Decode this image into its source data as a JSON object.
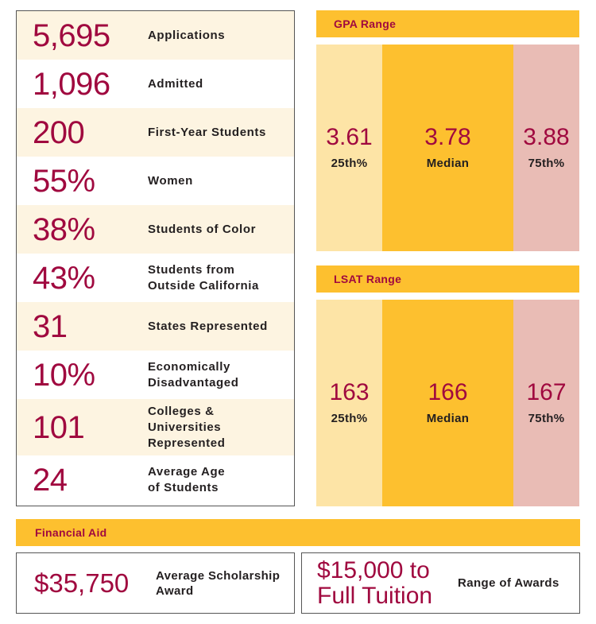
{
  "stats": [
    {
      "value": "5,695",
      "label": "Applications"
    },
    {
      "value": "1,096",
      "label": "Admitted"
    },
    {
      "value": "200",
      "label": "First-Year Students"
    },
    {
      "value": "55%",
      "label": "Women"
    },
    {
      "value": "38%",
      "label": "Students of Color"
    },
    {
      "value": "43%",
      "label": "Students from\nOutside California"
    },
    {
      "value": "31",
      "label": "States Represented"
    },
    {
      "value": "10%",
      "label": "Economically\nDisadvantaged"
    },
    {
      "value": "101",
      "label": "Colleges &\nUniversities\nRepresented"
    },
    {
      "value": "24",
      "label": "Average Age\nof Students"
    }
  ],
  "gpa": {
    "title": "GPA Range",
    "p25": "3.61",
    "p25_label": "25th%",
    "median": "3.78",
    "median_label": "Median",
    "p75": "3.88",
    "p75_label": "75th%"
  },
  "lsat": {
    "title": "LSAT Range",
    "p25": "163",
    "p25_label": "25th%",
    "median": "166",
    "median_label": "Median",
    "p75": "167",
    "p75_label": "75th%"
  },
  "financial_aid": {
    "title": "Financial Aid",
    "scholarship_value": "$35,750",
    "scholarship_label": "Average Scholarship\nAward",
    "range_value": "$15,000 to\nFull Tuition",
    "range_label": "Range of Awards"
  },
  "colors": {
    "accent": "#a0093f",
    "gold": "#fdc02f",
    "light_gold": "#fde4a6",
    "pink": "#e9bcb5",
    "alt_row": "#fdf4e1"
  }
}
